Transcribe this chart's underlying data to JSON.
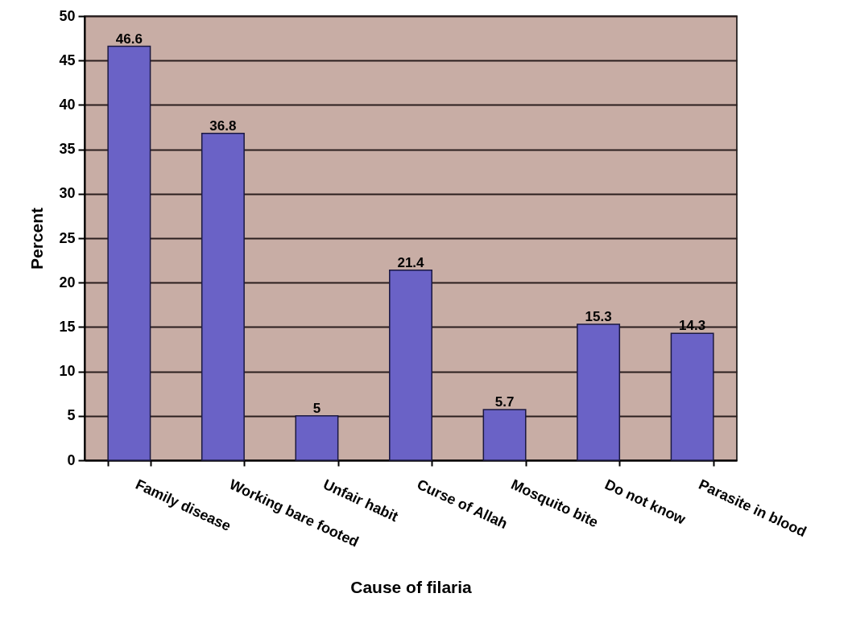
{
  "chart_data": {
    "type": "bar",
    "xlabel": "Cause of filaria",
    "ylabel": "Percent",
    "categories": [
      "Family disease",
      "Working bare footed",
      "Unfair habit",
      "Curse of Allah",
      "Mosquito bite",
      "Do not know",
      "Parasite in blood"
    ],
    "values": [
      46.6,
      36.8,
      5,
      21.4,
      5.7,
      15.3,
      14.3
    ],
    "color": "#6a62c6",
    "ylim": [
      0,
      50
    ],
    "yticks": [
      0,
      5,
      10,
      15,
      20,
      25,
      30,
      35,
      40,
      45,
      50
    ],
    "grid": "y",
    "data_labels": true
  }
}
